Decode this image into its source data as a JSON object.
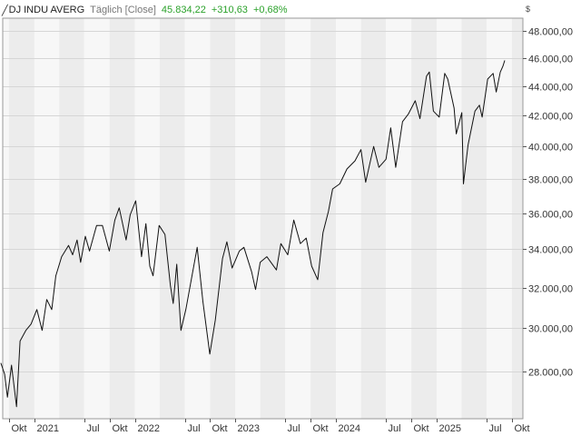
{
  "header": {
    "instrument_icon": "line-chart-icon",
    "instrument": "DJ INDU AVERG",
    "period": "Täglich [Close]",
    "last": "45.834,22",
    "change": "+310,63",
    "change_pct": "+0,68%"
  },
  "currency": "$",
  "colors": {
    "band_dark": "#ececec",
    "band_light": "#f7f7f7",
    "grid": "#d6d6d6",
    "line": "#111111",
    "positive": "#2aa12a"
  },
  "chart_data": {
    "type": "line",
    "title": "DJ INDU AVERG",
    "series": [
      {
        "name": "DJ INDU AVERG",
        "points": [
          [
            "2020-09-01",
            28400
          ],
          [
            "2020-09-15",
            27900
          ],
          [
            "2020-09-25",
            26900
          ],
          [
            "2020-10-10",
            28300
          ],
          [
            "2020-10-28",
            26500
          ],
          [
            "2020-11-10",
            29400
          ],
          [
            "2020-12-01",
            29900
          ],
          [
            "2020-12-20",
            30200
          ],
          [
            "2021-01-10",
            30900
          ],
          [
            "2021-01-29",
            29900
          ],
          [
            "2021-02-15",
            31400
          ],
          [
            "2021-03-05",
            30900
          ],
          [
            "2021-03-20",
            32600
          ],
          [
            "2021-04-10",
            33600
          ],
          [
            "2021-05-05",
            34200
          ],
          [
            "2021-05-20",
            33700
          ],
          [
            "2021-06-05",
            34500
          ],
          [
            "2021-06-18",
            33300
          ],
          [
            "2021-07-05",
            34700
          ],
          [
            "2021-07-20",
            33900
          ],
          [
            "2021-08-15",
            35300
          ],
          [
            "2021-09-05",
            35300
          ],
          [
            "2021-09-30",
            33900
          ],
          [
            "2021-10-20",
            35600
          ],
          [
            "2021-11-05",
            36300
          ],
          [
            "2021-11-30",
            34500
          ],
          [
            "2021-12-15",
            35900
          ],
          [
            "2022-01-04",
            36700
          ],
          [
            "2022-01-25",
            33600
          ],
          [
            "2022-02-10",
            35400
          ],
          [
            "2022-02-24",
            33100
          ],
          [
            "2022-03-08",
            32600
          ],
          [
            "2022-03-30",
            35300
          ],
          [
            "2022-04-20",
            34800
          ],
          [
            "2022-05-10",
            32100
          ],
          [
            "2022-05-20",
            31200
          ],
          [
            "2022-06-02",
            33200
          ],
          [
            "2022-06-17",
            29900
          ],
          [
            "2022-07-05",
            30900
          ],
          [
            "2022-08-15",
            34100
          ],
          [
            "2022-09-05",
            31300
          ],
          [
            "2022-09-30",
            28800
          ],
          [
            "2022-10-20",
            30400
          ],
          [
            "2022-11-15",
            33500
          ],
          [
            "2022-12-01",
            34400
          ],
          [
            "2022-12-20",
            33000
          ],
          [
            "2023-01-15",
            33900
          ],
          [
            "2023-02-01",
            34100
          ],
          [
            "2023-03-01",
            32800
          ],
          [
            "2023-03-15",
            31900
          ],
          [
            "2023-04-01",
            33300
          ],
          [
            "2023-04-25",
            33600
          ],
          [
            "2023-05-30",
            32900
          ],
          [
            "2023-06-15",
            34300
          ],
          [
            "2023-07-10",
            33700
          ],
          [
            "2023-08-01",
            35600
          ],
          [
            "2023-08-25",
            34300
          ],
          [
            "2023-09-15",
            34600
          ],
          [
            "2023-10-05",
            33100
          ],
          [
            "2023-10-27",
            32400
          ],
          [
            "2023-11-15",
            34900
          ],
          [
            "2023-12-05",
            36100
          ],
          [
            "2023-12-20",
            37400
          ],
          [
            "2024-01-15",
            37700
          ],
          [
            "2024-02-10",
            38600
          ],
          [
            "2024-03-10",
            39100
          ],
          [
            "2024-04-01",
            39800
          ],
          [
            "2024-04-18",
            37800
          ],
          [
            "2024-05-17",
            40000
          ],
          [
            "2024-06-05",
            38700
          ],
          [
            "2024-07-01",
            39200
          ],
          [
            "2024-07-18",
            41200
          ],
          [
            "2024-08-05",
            38700
          ],
          [
            "2024-08-30",
            41600
          ],
          [
            "2024-09-20",
            42100
          ],
          [
            "2024-10-15",
            43000
          ],
          [
            "2024-11-01",
            41800
          ],
          [
            "2024-11-25",
            44700
          ],
          [
            "2024-12-05",
            45000
          ],
          [
            "2024-12-20",
            42300
          ],
          [
            "2025-01-10",
            41900
          ],
          [
            "2025-01-30",
            44900
          ],
          [
            "2025-02-10",
            44500
          ],
          [
            "2025-03-05",
            42500
          ],
          [
            "2025-03-13",
            40800
          ],
          [
            "2025-04-02",
            42200
          ],
          [
            "2025-04-08",
            37700
          ],
          [
            "2025-04-25",
            40100
          ],
          [
            "2025-05-20",
            42300
          ],
          [
            "2025-06-05",
            42700
          ],
          [
            "2025-06-15",
            41900
          ],
          [
            "2025-07-05",
            44500
          ],
          [
            "2025-07-25",
            44900
          ],
          [
            "2025-08-05",
            43600
          ],
          [
            "2025-08-20",
            45000
          ],
          [
            "2025-08-29",
            45400
          ],
          [
            "2025-09-05",
            45834
          ]
        ]
      }
    ],
    "y_axis": {
      "scale": "log",
      "ylim": [
        26000,
        49000
      ],
      "ticks": [
        28000,
        30000,
        32000,
        34000,
        36000,
        38000,
        40000,
        42000,
        44000,
        46000,
        48000
      ],
      "tick_labels": [
        "28.000,00",
        "30.000,00",
        "32.000,00",
        "34.000,00",
        "36.000,00",
        "38.000,00",
        "40.000,00",
        "42.000,00",
        "44.000,00",
        "46.000,00",
        "48.000,00"
      ],
      "position": "right"
    },
    "x_axis": {
      "xlim": [
        "2020-09-08",
        "2025-11-10"
      ],
      "ticks": [
        {
          "date": "2020-10-01",
          "label": "Okt"
        },
        {
          "date": "2021-01-01",
          "label": "2021"
        },
        {
          "date": "2021-07-01",
          "label": "Jul"
        },
        {
          "date": "2021-10-01",
          "label": "Okt"
        },
        {
          "date": "2022-01-01",
          "label": "2022"
        },
        {
          "date": "2022-07-01",
          "label": "Jul"
        },
        {
          "date": "2022-10-01",
          "label": "Okt"
        },
        {
          "date": "2023-01-01",
          "label": "2023"
        },
        {
          "date": "2023-07-01",
          "label": "Jul"
        },
        {
          "date": "2023-10-01",
          "label": "Okt"
        },
        {
          "date": "2024-01-01",
          "label": "2024"
        },
        {
          "date": "2024-07-01",
          "label": "Jul"
        },
        {
          "date": "2024-10-01",
          "label": "Okt"
        },
        {
          "date": "2025-01-01",
          "label": "2025"
        },
        {
          "date": "2025-07-01",
          "label": "Jul"
        },
        {
          "date": "2025-10-01",
          "label": "Okt"
        }
      ]
    },
    "grid": true,
    "alternating_quarter_bands": true
  }
}
